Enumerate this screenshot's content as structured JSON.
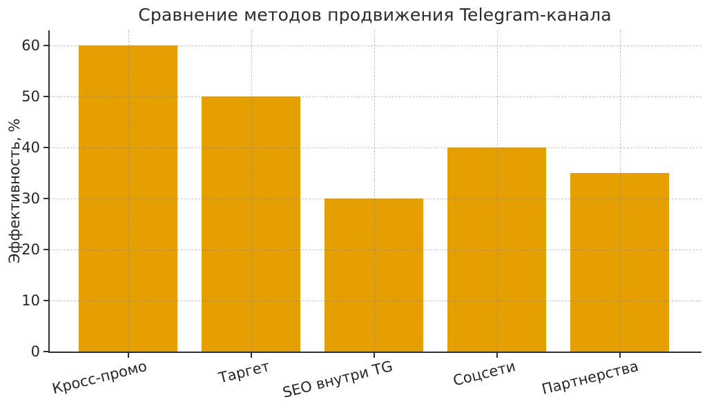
{
  "figure": {
    "background": "#ffffff"
  },
  "chart_data": {
    "type": "bar",
    "title": "Сравнение методов продвижения Telegram-канала",
    "xlabel": "",
    "ylabel": "Эффективность, %",
    "categories": [
      "Кросс-промо",
      "Таргет",
      "SEO внутри TG",
      "Соцсети",
      "Партнерства"
    ],
    "values": [
      60,
      50,
      30,
      40,
      35
    ],
    "yticks": [
      0,
      10,
      20,
      30,
      40,
      50,
      60
    ],
    "ylim": [
      0,
      63
    ],
    "grid": {
      "horizontal": true,
      "vertical": true,
      "style": "dashed",
      "above_bars": true
    },
    "legend": "none",
    "x_tick_label_rotation_deg": -14,
    "colors": {
      "bar": "#E69F00",
      "axis": "#2e2e2e",
      "text": "#262626",
      "grid": "#d4d4d4",
      "background": "#ffffff"
    }
  }
}
